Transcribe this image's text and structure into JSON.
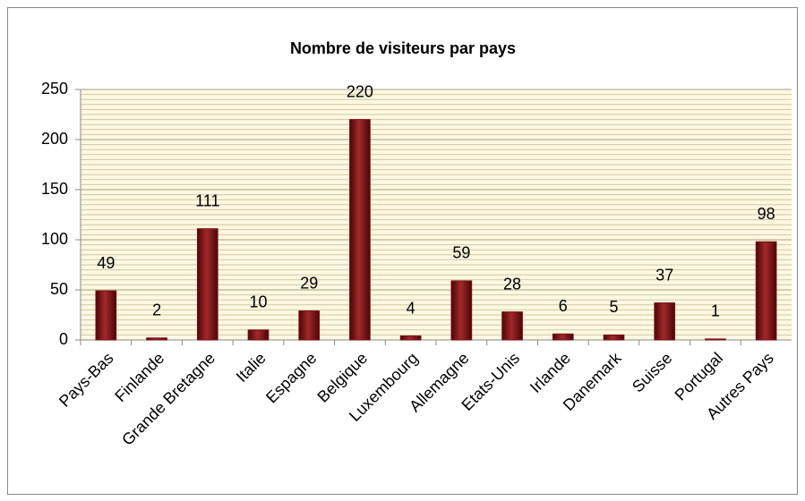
{
  "chart_data": {
    "type": "bar",
    "title": "Nombre de visiteurs par pays",
    "categories": [
      "Pays-Bas",
      "Finlande",
      "Grande Bretagne",
      "Italie",
      "Espagne",
      "Belgique",
      "Luxembourg",
      "Allemagne",
      "Etats-Unis",
      "Irlande",
      "Danemark",
      "Suisse",
      "Portugal",
      "Autres Pays"
    ],
    "values": [
      49,
      2,
      111,
      10,
      29,
      220,
      4,
      59,
      28,
      6,
      5,
      37,
      1,
      98
    ],
    "color": "#7a0f12",
    "ylim": [
      0,
      250
    ],
    "yticks": [
      0,
      50,
      100,
      150,
      200,
      250
    ],
    "grid": true,
    "minor_grid": 5
  }
}
